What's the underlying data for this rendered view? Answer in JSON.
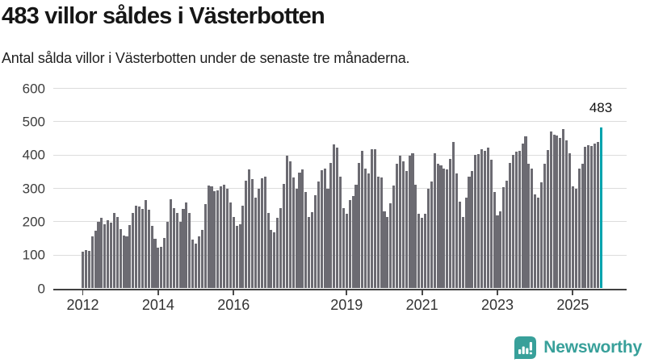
{
  "header": {
    "title": "483 villor såldes i Västerbotten",
    "subtitle": "Antal sålda villor i Västerbotten under de senaste tre månaderna."
  },
  "chart_data": {
    "type": "bar",
    "title": "483 villor såldes i Västerbotten",
    "ylabel": "",
    "xlabel": "",
    "ylim": [
      0,
      600
    ],
    "grid": true,
    "y_ticks": [
      0,
      100,
      200,
      300,
      400,
      500,
      600
    ],
    "x_ticks": [
      {
        "label": "2012",
        "month_index": 0
      },
      {
        "label": "2014",
        "month_index": 24
      },
      {
        "label": "2016",
        "month_index": 48
      },
      {
        "label": "2019",
        "month_index": 84
      },
      {
        "label": "2021",
        "month_index": 108
      },
      {
        "label": "2023",
        "month_index": 132
      },
      {
        "label": "2025",
        "month_index": 156
      }
    ],
    "start_month": "2012-01",
    "values": [
      110,
      116,
      112,
      155,
      172,
      200,
      212,
      192,
      204,
      198,
      226,
      215,
      178,
      158,
      155,
      191,
      226,
      248,
      246,
      238,
      264,
      235,
      187,
      150,
      123,
      124,
      151,
      199,
      268,
      240,
      227,
      199,
      238,
      258,
      227,
      147,
      135,
      155,
      175,
      252,
      308,
      306,
      292,
      295,
      305,
      310,
      300,
      258,
      215,
      187,
      193,
      249,
      324,
      358,
      327,
      272,
      300,
      330,
      334,
      227,
      175,
      167,
      211,
      240,
      314,
      397,
      382,
      332,
      300,
      348,
      356,
      288,
      215,
      228,
      280,
      320,
      355,
      360,
      300,
      377,
      431,
      423,
      336,
      240,
      223,
      264,
      276,
      312,
      377,
      413,
      360,
      344,
      417,
      417,
      336,
      332,
      231,
      215,
      256,
      308,
      373,
      397,
      381,
      352,
      399,
      405,
      312,
      223,
      211,
      223,
      300,
      320,
      406,
      373,
      369,
      360,
      356,
      389,
      439,
      344,
      260,
      215,
      272,
      336,
      352,
      401,
      402,
      417,
      413,
      423,
      385,
      288,
      219,
      231,
      304,
      324,
      377,
      400,
      410,
      412,
      434,
      456,
      375,
      359,
      283,
      272,
      319,
      375,
      416,
      471,
      460,
      458,
      452,
      477,
      444,
      405,
      305,
      299,
      359,
      375,
      424,
      430,
      428,
      434,
      440,
      483
    ],
    "bar_color": "#6c6b72",
    "highlight": {
      "index": 165,
      "value": 483,
      "label": "483",
      "color": "#00a3ad"
    }
  },
  "footer": {
    "brand": "Newsworthy",
    "brand_color": "#38a09a"
  }
}
